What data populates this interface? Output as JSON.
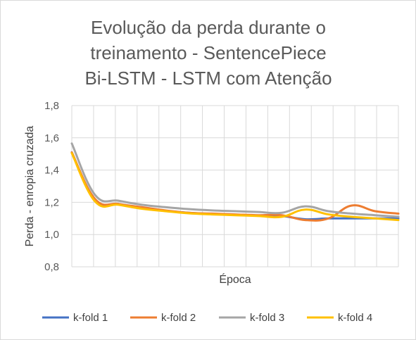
{
  "chart_data": {
    "type": "line",
    "title_lines": [
      "Evolução da perda durante o",
      "treinamento - SentencePiece",
      "Bi-LSTM - LSTM com Atenção"
    ],
    "xlabel": "Época",
    "ylabel": "Perda - enropia cruzada",
    "ylim": [
      0.8,
      1.8
    ],
    "yticks": [
      "0,8",
      "1,0",
      "1,2",
      "1,4",
      "1,6",
      "1,8"
    ],
    "ytick_values": [
      0.8,
      1.0,
      1.2,
      1.4,
      1.6,
      1.8
    ],
    "x_count": 15,
    "grid": "both",
    "legend_position": "bottom",
    "x": [
      1,
      2,
      3,
      4,
      5,
      6,
      7,
      8,
      9,
      10,
      11,
      12,
      13,
      14,
      15
    ],
    "series": [
      {
        "name": "k-fold 1",
        "color": "#4472C4",
        "values": [
          1.51,
          1.21,
          1.19,
          1.165,
          1.148,
          1.135,
          1.128,
          1.122,
          1.118,
          1.115,
          1.095,
          1.1,
          1.1,
          1.1,
          1.1
        ]
      },
      {
        "name": "k-fold 2",
        "color": "#ED7D31",
        "values": [
          1.51,
          1.22,
          1.19,
          1.17,
          1.15,
          1.135,
          1.13,
          1.125,
          1.12,
          1.12,
          1.09,
          1.1,
          1.18,
          1.145,
          1.13
        ]
      },
      {
        "name": "k-fold 3",
        "color": "#A5A5A5",
        "values": [
          1.565,
          1.245,
          1.21,
          1.185,
          1.17,
          1.158,
          1.15,
          1.145,
          1.14,
          1.135,
          1.175,
          1.145,
          1.13,
          1.12,
          1.11
        ]
      },
      {
        "name": "k-fold 4",
        "color": "#FFC000",
        "values": [
          1.505,
          1.205,
          1.185,
          1.16,
          1.145,
          1.132,
          1.125,
          1.12,
          1.115,
          1.11,
          1.155,
          1.125,
          1.11,
          1.1,
          1.09
        ]
      }
    ]
  }
}
